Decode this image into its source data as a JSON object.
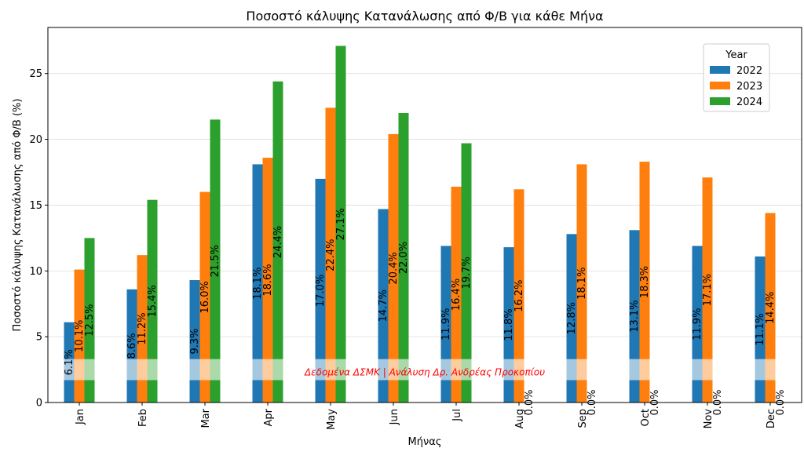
{
  "chart_data": {
    "type": "bar",
    "title": "Ποσοστό κάλυψης Κατανάλωσης από Φ/Β για κάθε Μήνα",
    "xlabel": "Μήνας",
    "ylabel": "Ποσοστό κάλυψης Κατανάλωσης από Φ/Β (%)",
    "categories": [
      "Jan",
      "Feb",
      "Mar",
      "Apr",
      "May",
      "Jun",
      "Jul",
      "Aug",
      "Sep",
      "Oct",
      "Nov",
      "Dec"
    ],
    "ylim": [
      0,
      28.5
    ],
    "yticks": [
      0,
      5,
      10,
      15,
      20,
      25
    ],
    "grid": true,
    "legend": {
      "title": "Year",
      "placement": "top-right"
    },
    "series": [
      {
        "name": "2022",
        "color": "#1f77b4",
        "values": [
          6.1,
          8.6,
          9.3,
          18.1,
          17.0,
          14.7,
          11.9,
          11.8,
          12.8,
          13.1,
          11.9,
          11.1
        ],
        "labels": [
          "6.1%",
          "8.6%",
          "9.3%",
          "18.1%",
          "17.0%",
          "14.7%",
          "11.9%",
          "11.8%",
          "12.8%",
          "13.1%",
          "11.9%",
          "11.1%"
        ]
      },
      {
        "name": "2023",
        "color": "#ff7f0e",
        "values": [
          10.1,
          11.2,
          16.0,
          18.6,
          22.4,
          20.4,
          16.4,
          16.2,
          18.1,
          18.3,
          17.1,
          14.4
        ],
        "labels": [
          "10.1%",
          "11.2%",
          "16.0%",
          "18.6%",
          "22.4%",
          "20.4%",
          "16.4%",
          "16.2%",
          "18.1%",
          "18.3%",
          "17.1%",
          "14.4%"
        ]
      },
      {
        "name": "2024",
        "color": "#2ca02c",
        "values": [
          12.5,
          15.4,
          21.5,
          24.4,
          27.1,
          22.0,
          19.7,
          0.0,
          0.0,
          0.0,
          0.0,
          0.0
        ],
        "labels": [
          "12.5%",
          "15.4%",
          "21.5%",
          "24.4%",
          "27.1%",
          "22.0%",
          "19.7%",
          "0.0%",
          "0.0%",
          "0.0%",
          "0.0%",
          "0.0%"
        ]
      }
    ],
    "annotation": {
      "text": "Δεδομένα ΔΣΜΚ | Ανάλυση Δρ. Ανδρέας Προκοπίου",
      "color": "#ff0000"
    }
  }
}
